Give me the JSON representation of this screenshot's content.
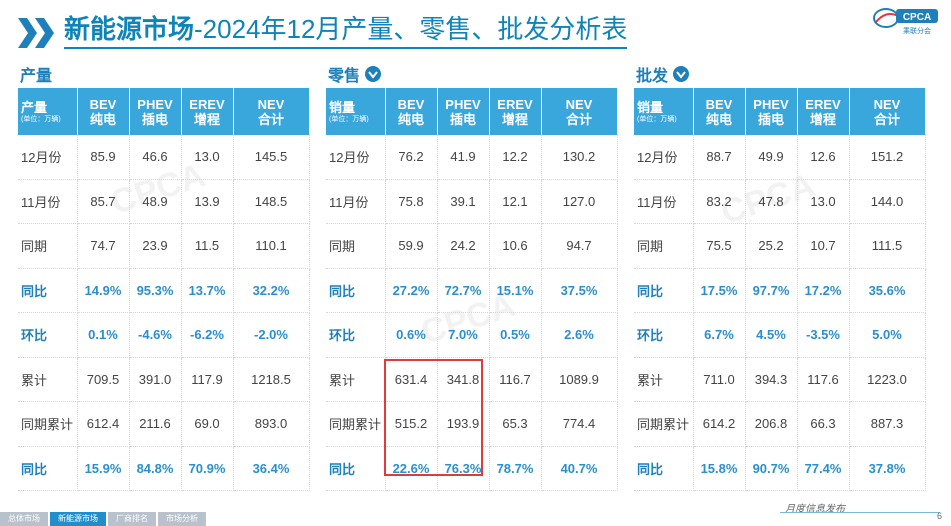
{
  "header": {
    "title_strong": "新能源市场",
    "title_rest": "-2024年12月产量、零售、批发分析表",
    "logo_text": "CPCA",
    "logo_sub": "乘联分会"
  },
  "colors": {
    "accent": "#3aa7dc",
    "title": "#0f84b8",
    "highlight": "#e03a3a"
  },
  "tables": [
    {
      "label": "产量",
      "has_icon": false,
      "first_header": "产量",
      "first_header_sub": "(单位：万辆)",
      "headers": [
        [
          "BEV",
          "纯电"
        ],
        [
          "PHEV",
          "插电"
        ],
        [
          "EREV",
          "增程"
        ],
        [
          "NEV",
          "合计"
        ]
      ],
      "rows": [
        {
          "label": "12月份",
          "values": [
            "85.9",
            "46.6",
            "13.0",
            "145.5"
          ]
        },
        {
          "label": "11月份",
          "values": [
            "85.7",
            "48.9",
            "13.9",
            "148.5"
          ]
        },
        {
          "label": "同期",
          "values": [
            "74.7",
            "23.9",
            "11.5",
            "110.1"
          ]
        },
        {
          "label": "同比",
          "values": [
            "14.9%",
            "95.3%",
            "13.7%",
            "32.2%"
          ]
        },
        {
          "label": "环比",
          "values": [
            "0.1%",
            "-4.6%",
            "-6.2%",
            "-2.0%"
          ]
        },
        {
          "label": "累计",
          "values": [
            "709.5",
            "391.0",
            "117.9",
            "1218.5"
          ]
        },
        {
          "label": "同期累计",
          "values": [
            "612.4",
            "211.6",
            "69.0",
            "893.0"
          ]
        },
        {
          "label": "同比",
          "values": [
            "15.9%",
            "84.8%",
            "70.9%",
            "36.4%"
          ]
        }
      ]
    },
    {
      "label": "零售",
      "has_icon": true,
      "first_header": "销量",
      "first_header_sub": "(单位：万辆)",
      "headers": [
        [
          "BEV",
          "纯电"
        ],
        [
          "PHEV",
          "插电"
        ],
        [
          "EREV",
          "增程"
        ],
        [
          "NEV",
          "合计"
        ]
      ],
      "rows": [
        {
          "label": "12月份",
          "values": [
            "76.2",
            "41.9",
            "12.2",
            "130.2"
          ]
        },
        {
          "label": "11月份",
          "values": [
            "75.8",
            "39.1",
            "12.1",
            "127.0"
          ]
        },
        {
          "label": "同期",
          "values": [
            "59.9",
            "24.2",
            "10.6",
            "94.7"
          ]
        },
        {
          "label": "同比",
          "values": [
            "27.2%",
            "72.7%",
            "15.1%",
            "37.5%"
          ]
        },
        {
          "label": "环比",
          "values": [
            "0.6%",
            "7.0%",
            "0.5%",
            "2.6%"
          ]
        },
        {
          "label": "累计",
          "values": [
            "631.4",
            "341.8",
            "116.7",
            "1089.9"
          ]
        },
        {
          "label": "同期累计",
          "values": [
            "515.2",
            "193.9",
            "65.3",
            "774.4"
          ]
        },
        {
          "label": "同比",
          "values": [
            "22.6%",
            "76.3%",
            "78.7%",
            "40.7%"
          ]
        }
      ]
    },
    {
      "label": "批发",
      "has_icon": true,
      "first_header": "销量",
      "first_header_sub": "(单位：万辆)",
      "headers": [
        [
          "BEV",
          "纯电"
        ],
        [
          "PHEV",
          "插电"
        ],
        [
          "EREV",
          "增程"
        ],
        [
          "NEV",
          "合计"
        ]
      ],
      "rows": [
        {
          "label": "12月份",
          "values": [
            "88.7",
            "49.9",
            "12.6",
            "151.2"
          ]
        },
        {
          "label": "11月份",
          "values": [
            "83.2",
            "47.8",
            "13.0",
            "144.0"
          ]
        },
        {
          "label": "同期",
          "values": [
            "75.5",
            "25.2",
            "10.7",
            "111.5"
          ]
        },
        {
          "label": "同比",
          "values": [
            "17.5%",
            "97.7%",
            "17.2%",
            "35.6%"
          ]
        },
        {
          "label": "环比",
          "values": [
            "6.7%",
            "4.5%",
            "-3.5%",
            "5.0%"
          ]
        },
        {
          "label": "累计",
          "values": [
            "711.0",
            "394.3",
            "117.6",
            "1223.0"
          ]
        },
        {
          "label": "同期累计",
          "values": [
            "614.2",
            "206.8",
            "66.3",
            "887.3"
          ]
        },
        {
          "label": "同比",
          "values": [
            "15.8%",
            "90.7%",
            "77.4%",
            "37.8%"
          ]
        }
      ]
    }
  ],
  "footer": {
    "publish_text": "月度信息发布",
    "page_number": "6",
    "tabs": [
      "总体市场",
      "新能源市场",
      "厂商排名",
      "市场分析"
    ],
    "active_tab": "新能源市场"
  }
}
